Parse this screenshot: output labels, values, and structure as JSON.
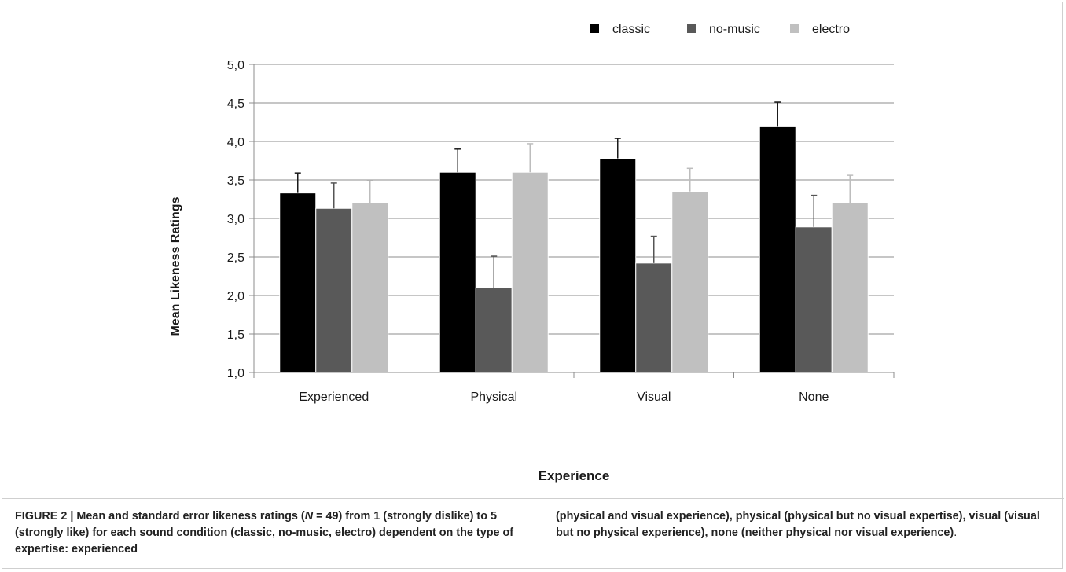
{
  "chart_data": {
    "type": "bar",
    "title": "",
    "xlabel": "Experience",
    "ylabel": "Mean Likeness Ratings",
    "categories": [
      "Experienced",
      "Physical",
      "Visual",
      "None"
    ],
    "ylim": [
      1.0,
      5.0
    ],
    "yticks": [
      "1,0",
      "1,5",
      "2,0",
      "2,5",
      "3,0",
      "3,5",
      "4,0",
      "4,5",
      "5,0"
    ],
    "ytick_values": [
      1.0,
      1.5,
      2.0,
      2.5,
      3.0,
      3.5,
      4.0,
      4.5,
      5.0
    ],
    "grid": "horizontal",
    "legend_position": "top-right",
    "series": [
      {
        "name": "classic",
        "color": "#000000",
        "values": [
          3.33,
          3.6,
          3.78,
          4.2
        ],
        "errors": [
          0.26,
          0.3,
          0.26,
          0.31
        ]
      },
      {
        "name": "no-music",
        "color": "#595959",
        "values": [
          3.13,
          2.1,
          2.42,
          2.89
        ],
        "errors": [
          0.33,
          0.41,
          0.35,
          0.41
        ]
      },
      {
        "name": "electro",
        "color": "#c0c0c0",
        "values": [
          3.2,
          3.6,
          3.35,
          3.2
        ],
        "errors": [
          0.29,
          0.37,
          0.3,
          0.36
        ]
      }
    ]
  },
  "caption": {
    "left_pre": "FIGURE 2 | Mean and standard error likeness ratings (",
    "n_symbol": "N",
    "left_post": " = 49) from 1 (strongly dislike) to 5 (strongly like) for each sound condition (classic, no-music, electro) dependent on the type of expertise: experienced",
    "right": "(physical and visual experience), physical (physical but no visual expertise), visual (visual but no physical experience), none (neither physical nor visual experience)",
    "right_end": "."
  }
}
